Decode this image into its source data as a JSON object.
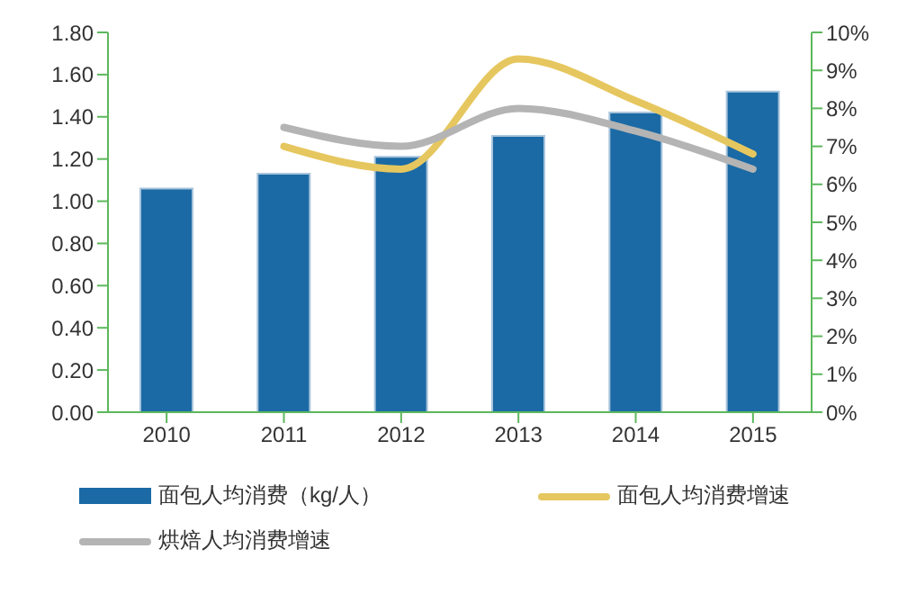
{
  "chart_data": {
    "type": "bar",
    "categories": [
      "2010",
      "2011",
      "2012",
      "2013",
      "2014",
      "2015"
    ],
    "series": [
      {
        "name": "面包人均消费（kg/人）",
        "color": "#1b6aa5",
        "values": [
          1.06,
          1.13,
          1.21,
          1.31,
          1.42,
          1.52
        ]
      },
      {
        "name": "面包人均消费增速",
        "type": "line",
        "axis": "y2",
        "color": "#e6c75f",
        "values": [
          null,
          7.0,
          6.4,
          9.3,
          8.2,
          6.8
        ]
      },
      {
        "name": "烘焙人均消费增速",
        "type": "line",
        "axis": "y2",
        "color": "#b4b4b4",
        "values": [
          null,
          7.5,
          7.0,
          8.0,
          7.4,
          6.4
        ]
      }
    ],
    "ylim": [
      0,
      1.8
    ],
    "yticks": [
      {
        "value": 0,
        "label": "0.00"
      },
      {
        "value": 0.2,
        "label": "0.20"
      },
      {
        "value": 0.4,
        "label": "0.40"
      },
      {
        "value": 0.6,
        "label": "0.60"
      },
      {
        "value": 0.8,
        "label": "0.80"
      },
      {
        "value": 1,
        "label": "1.00"
      },
      {
        "value": 1.2,
        "label": "1.20"
      },
      {
        "value": 1.4,
        "label": "1.40"
      },
      {
        "value": 1.6,
        "label": "1.60"
      },
      {
        "value": 1.8,
        "label": "1.80"
      }
    ],
    "y2lim": [
      0,
      10
    ],
    "y2ticks": [
      {
        "value": 0,
        "label": "0%"
      },
      {
        "value": 1,
        "label": "1%"
      },
      {
        "value": 2,
        "label": "2%"
      },
      {
        "value": 3,
        "label": "3%"
      },
      {
        "value": 4,
        "label": "4%"
      },
      {
        "value": 5,
        "label": "5%"
      },
      {
        "value": 6,
        "label": "6%"
      },
      {
        "value": 7,
        "label": "7%"
      },
      {
        "value": 8,
        "label": "8%"
      },
      {
        "value": 9,
        "label": "9%"
      },
      {
        "value": 10,
        "label": "10%"
      }
    ],
    "legend": "bottom"
  }
}
